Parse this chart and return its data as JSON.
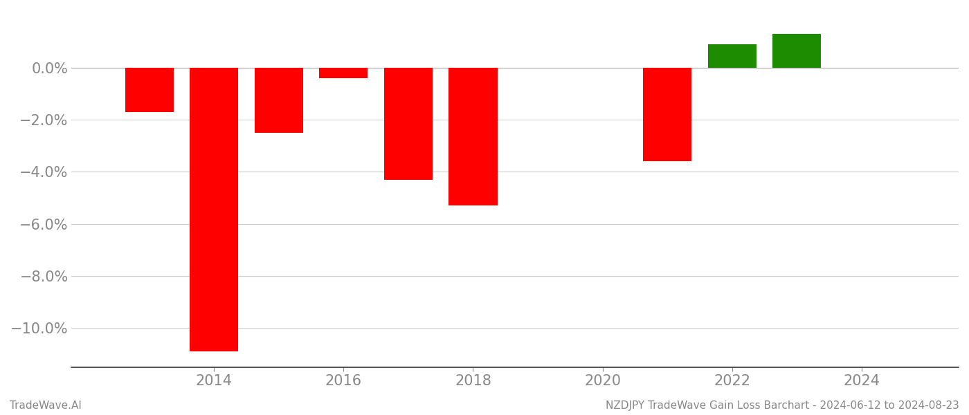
{
  "years": [
    2013,
    2014,
    2015,
    2016,
    2017,
    2018,
    2019,
    2021,
    2022,
    2023
  ],
  "values": [
    -1.7,
    -10.9,
    -2.5,
    -0.4,
    -4.3,
    -5.3,
    0.0,
    -3.6,
    0.9,
    1.3
  ],
  "bar_colors": [
    "red",
    "red",
    "red",
    "red",
    "red",
    "red",
    "red",
    "red",
    "green",
    "green"
  ],
  "title": "",
  "footer_left": "TradeWave.AI",
  "footer_right": "NZDJPY TradeWave Gain Loss Barchart - 2024-06-12 to 2024-08-23",
  "ylim": [
    -11.5,
    2.2
  ],
  "yticks": [
    0.0,
    -2.0,
    -4.0,
    -6.0,
    -8.0,
    -10.0
  ],
  "ytick_labels": [
    "0.0%",
    "−2.0%",
    "−4.0%",
    "−6.0%",
    "−8.0%",
    "−10.0%"
  ],
  "xlim": [
    2011.8,
    2025.5
  ],
  "xticks": [
    2014,
    2016,
    2018,
    2020,
    2022,
    2024
  ],
  "bar_width": 0.75,
  "background_color": "#ffffff",
  "grid_color": "#cccccc",
  "tick_color": "#999999",
  "label_color": "#888888",
  "red_color": "#ff0000",
  "green_color": "#1e8c00",
  "footer_fontsize": 11,
  "tick_fontsize": 15
}
